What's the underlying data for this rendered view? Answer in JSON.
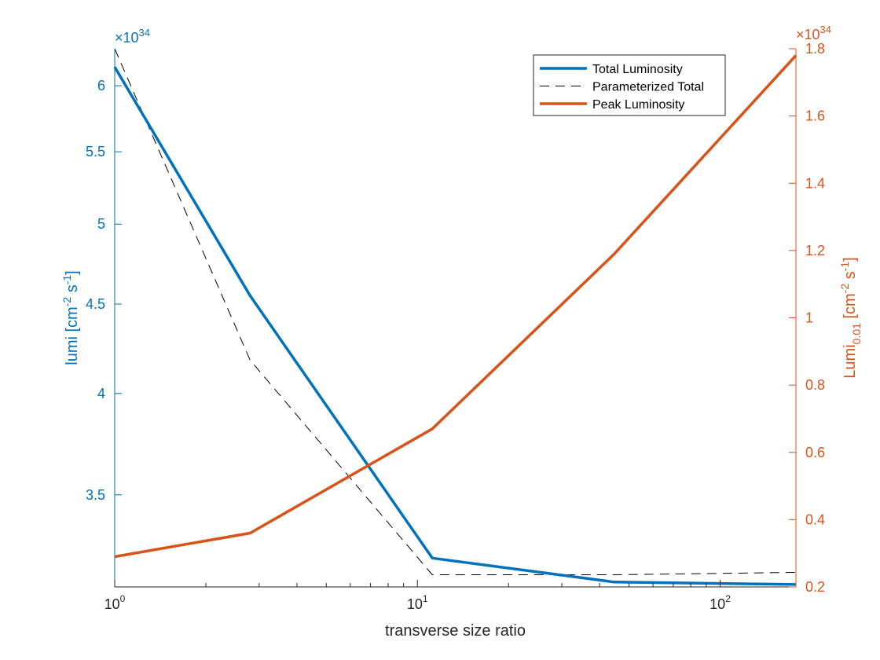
{
  "chart_data": {
    "type": "line",
    "xscale": "log",
    "xlabel": "transverse size ratio",
    "xlim": [
      1,
      178
    ],
    "x": [
      1,
      2.8,
      11.2,
      44.7,
      178
    ],
    "x_ticks": [
      {
        "value": 1,
        "base": "10",
        "exp": "0"
      },
      {
        "value": 10,
        "base": "10",
        "exp": "1"
      },
      {
        "value": 100,
        "base": "10",
        "exp": "2"
      }
    ],
    "left_axis": {
      "label_prefix": "lumi [cm",
      "label_exp1": "-2",
      "label_mid": " s",
      "label_exp2": "-1",
      "label_suffix": "]",
      "scale": "log",
      "multiplier_base": "×10",
      "multiplier_exp": "34",
      "ylim": [
        3.1,
        6.3
      ],
      "ticks": [
        3.5,
        4,
        4.5,
        5,
        5.5,
        6
      ],
      "tick_labels": [
        "3.5",
        "4",
        "4.5",
        "5",
        "5.5",
        "6"
      ],
      "color": "#0072BD"
    },
    "right_axis": {
      "label_prefix": "Lumi",
      "label_sub": "0.01",
      "label_mid": " [cm",
      "label_exp1": "-2",
      "label_mid2": " s",
      "label_exp2": "-1",
      "label_suffix": "]",
      "scale": "linear",
      "multiplier_base": "×10",
      "multiplier_exp": "34",
      "ylim": [
        0.2,
        1.8
      ],
      "ticks": [
        0.2,
        0.4,
        0.6,
        0.8,
        1,
        1.2,
        1.4,
        1.6,
        1.8
      ],
      "tick_labels": [
        "0.2",
        "0.4",
        "0.6",
        "0.8",
        "1",
        "1.2",
        "1.4",
        "1.6",
        "1.8"
      ],
      "color": "#D95319"
    },
    "series": [
      {
        "name": "Total Luminosity",
        "axis": "left",
        "style": "solid",
        "color": "#0072BD",
        "values": [
          6.15,
          4.55,
          3.22,
          3.12,
          3.11
        ]
      },
      {
        "name": "Parameterized Total",
        "axis": "left",
        "style": "dashed",
        "color": "#000000",
        "values": [
          6.3,
          4.18,
          3.15,
          3.15,
          3.16
        ]
      },
      {
        "name": "Peak Luminosity",
        "axis": "right",
        "style": "solid",
        "color": "#D95319",
        "values": [
          0.29,
          0.36,
          0.67,
          1.19,
          1.78
        ]
      }
    ],
    "legend": {
      "position": "top-right"
    }
  }
}
